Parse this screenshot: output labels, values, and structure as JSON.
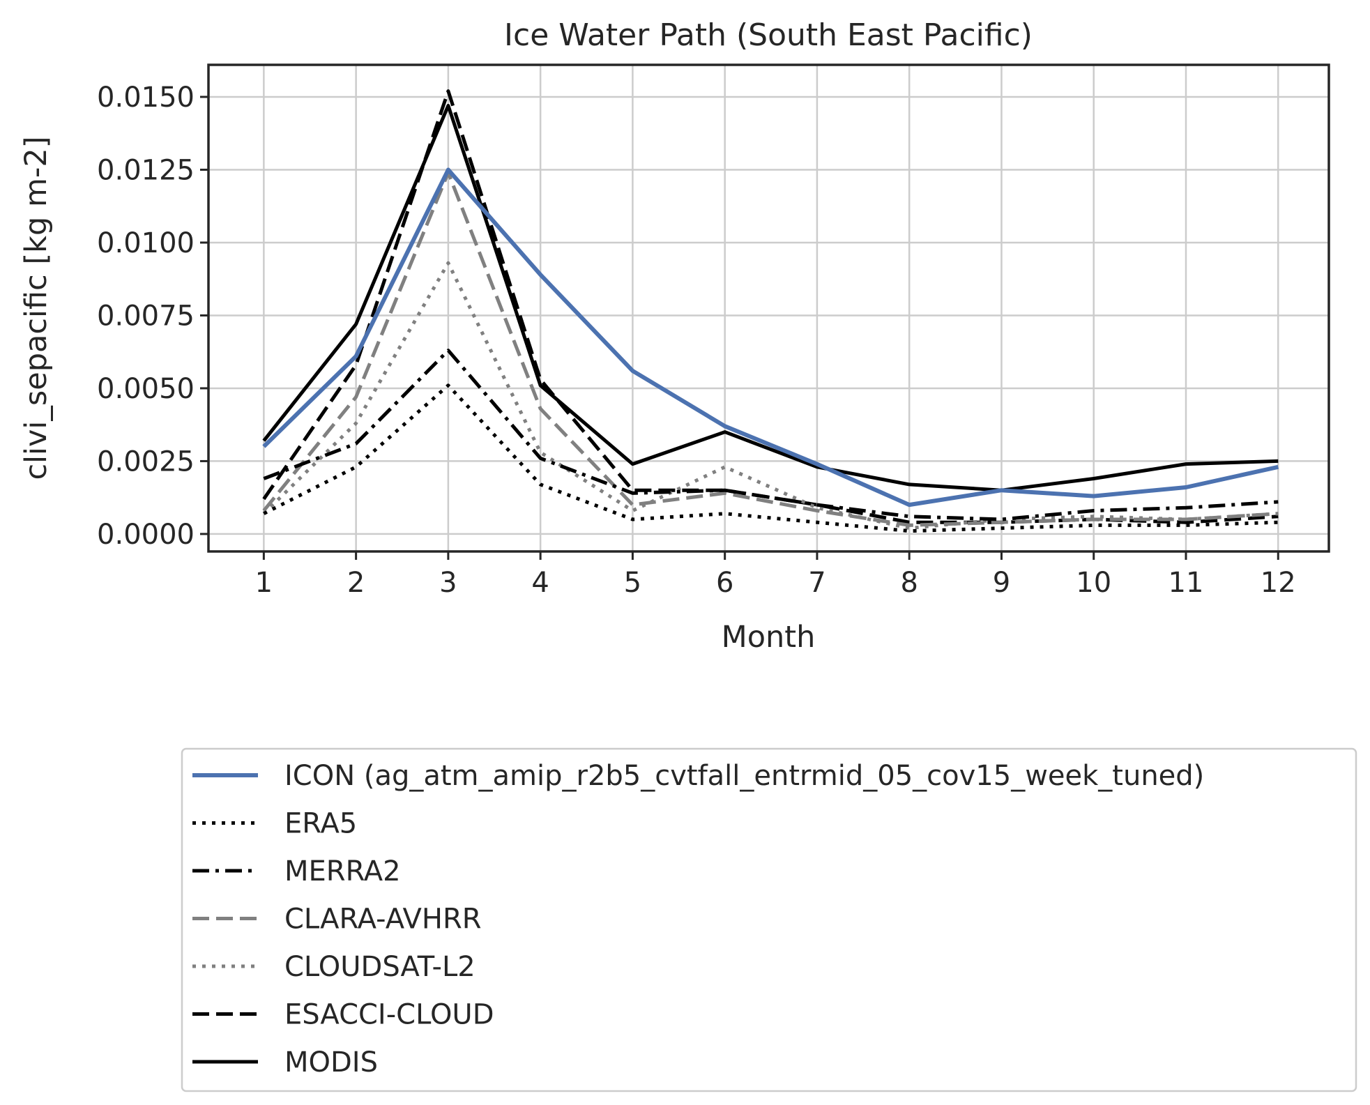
{
  "chart_data": {
    "type": "line",
    "title": "Ice Water Path (South East Pacific)",
    "xlabel": "Month",
    "ylabel": "clivi_sepacific [kg m-2]",
    "x": [
      1,
      2,
      3,
      4,
      5,
      6,
      7,
      8,
      9,
      10,
      11,
      12
    ],
    "xticks": [
      "1",
      "2",
      "3",
      "4",
      "5",
      "6",
      "7",
      "8",
      "9",
      "10",
      "11",
      "12"
    ],
    "xlim": [
      0.4,
      12.55
    ],
    "ylim": [
      -0.0006,
      0.0161
    ],
    "yticks": [
      "0.0000",
      "0.0025",
      "0.0050",
      "0.0075",
      "0.0100",
      "0.0125",
      "0.0150"
    ],
    "ytick_values": [
      0,
      0.0025,
      0.005,
      0.0075,
      0.01,
      0.0125,
      0.015
    ],
    "grid": true,
    "legend_position": "below",
    "series": [
      {
        "name": "ICON (ag_atm_amip_r2b5_cvtfall_entrmid_05_cov15_week_tuned)",
        "color": "#4c72b0",
        "style": "solid",
        "width": 6,
        "values": [
          0.003,
          0.0061,
          0.0125,
          0.0089,
          0.0056,
          0.0037,
          0.0024,
          0.001,
          0.0015,
          0.0013,
          0.0016,
          0.0023
        ]
      },
      {
        "name": "ERA5",
        "color": "#000000",
        "style": "dotted",
        "width": 5,
        "values": [
          0.0007,
          0.0023,
          0.0051,
          0.0017,
          0.0005,
          0.0007,
          0.0004,
          0.0001,
          0.0002,
          0.0003,
          0.0003,
          0.0004
        ]
      },
      {
        "name": "MERRA2",
        "color": "#000000",
        "style": "dashdot",
        "width": 5,
        "values": [
          0.0019,
          0.0031,
          0.0063,
          0.0026,
          0.0014,
          0.0015,
          0.001,
          0.0006,
          0.0005,
          0.0008,
          0.0009,
          0.0011
        ]
      },
      {
        "name": "CLARA-AVHRR",
        "color": "#808080",
        "style": "dashed",
        "width": 5,
        "values": [
          0.0008,
          0.0047,
          0.0124,
          0.0043,
          0.001,
          0.0014,
          0.0008,
          0.0003,
          0.0004,
          0.0005,
          0.0005,
          0.0007
        ]
      },
      {
        "name": "CLOUDSAT-L2",
        "color": "#808080",
        "style": "dotted",
        "width": 5,
        "values": [
          0.0007,
          0.0038,
          0.0093,
          0.0028,
          0.0008,
          0.0023,
          0.0009,
          0.0002,
          0.0005,
          0.0006,
          0.0005,
          0.0007
        ]
      },
      {
        "name": "ESACCI-CLOUD",
        "color": "#000000",
        "style": "dashed",
        "width": 5,
        "values": [
          0.0012,
          0.0058,
          0.0152,
          0.0053,
          0.0015,
          0.0015,
          0.001,
          0.0004,
          0.0004,
          0.0005,
          0.0004,
          0.0006
        ]
      },
      {
        "name": "MODIS",
        "color": "#000000",
        "style": "solid",
        "width": 5,
        "values": [
          0.0032,
          0.0072,
          0.0147,
          0.0051,
          0.0024,
          0.0035,
          0.0023,
          0.0017,
          0.0015,
          0.0019,
          0.0024,
          0.0025
        ]
      }
    ]
  }
}
